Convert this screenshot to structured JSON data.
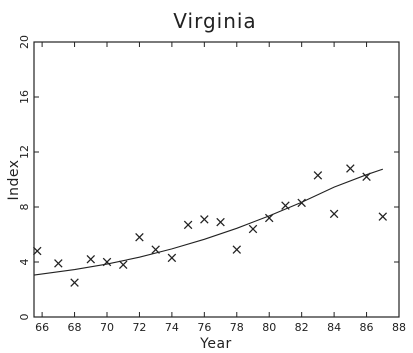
{
  "chart_data": {
    "type": "scatter",
    "title": "Virginia",
    "xlabel": "Year",
    "ylabel": "Index",
    "xlim": [
      65.5,
      88
    ],
    "ylim": [
      0,
      20
    ],
    "xticks": [
      66,
      68,
      70,
      72,
      74,
      76,
      78,
      80,
      82,
      84,
      86,
      88
    ],
    "yticks": [
      0,
      4,
      8,
      12,
      16,
      20
    ],
    "grid": false,
    "legend": "none",
    "series": [
      {
        "marker": "x",
        "x": [
          65.7,
          67,
          68,
          69,
          70,
          71,
          72,
          73,
          74,
          75,
          76,
          77,
          78,
          79,
          80,
          81,
          82,
          83,
          84,
          85,
          86,
          87
        ],
        "y": [
          4.8,
          3.9,
          2.5,
          4.2,
          4.0,
          3.8,
          5.8,
          4.9,
          4.3,
          6.7,
          7.1,
          6.9,
          4.9,
          6.4,
          7.2,
          8.1,
          8.3,
          10.3,
          7.5,
          10.8,
          10.2,
          7.3
        ]
      },
      {
        "type": "line",
        "style": "smooth-fit",
        "x": [
          65.5,
          68,
          70,
          72,
          74,
          76,
          78,
          80,
          82,
          84,
          86,
          87
        ],
        "y": [
          3.05,
          3.45,
          3.85,
          4.35,
          4.95,
          5.65,
          6.45,
          7.35,
          8.35,
          9.45,
          10.35,
          10.75
        ]
      }
    ]
  }
}
